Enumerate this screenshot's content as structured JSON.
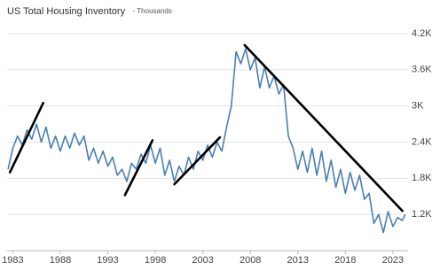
{
  "chart_data": {
    "type": "line",
    "title": "US Total Housing Inventory",
    "subtitle": "- Thousands",
    "x": [
      1982.5,
      1983,
      1983.5,
      1984,
      1984.5,
      1985,
      1985.5,
      1986,
      1986.5,
      1987,
      1987.5,
      1988,
      1988.5,
      1989,
      1989.5,
      1990,
      1990.5,
      1991,
      1991.5,
      1992,
      1992.5,
      1993,
      1993.5,
      1994,
      1994.5,
      1995,
      1995.5,
      1996,
      1996.5,
      1997,
      1997.5,
      1998,
      1998.5,
      1999,
      1999.5,
      2000,
      2000.5,
      2001,
      2001.5,
      2002,
      2002.5,
      2003,
      2003.5,
      2004,
      2004.5,
      2005,
      2005.5,
      2006,
      2006.5,
      2007,
      2007.5,
      2008,
      2008.5,
      2009,
      2009.5,
      2010,
      2010.5,
      2011,
      2011.5,
      2012,
      2012.5,
      2013,
      2013.5,
      2014,
      2014.5,
      2015,
      2015.5,
      2016,
      2016.5,
      2017,
      2017.5,
      2018,
      2018.5,
      2019,
      2019.5,
      2020,
      2020.5,
      2021,
      2021.5,
      2022,
      2022.5,
      2023,
      2023.5,
      2024,
      2024.3
    ],
    "series": [
      {
        "name": "US Total Housing Inventory",
        "color": "#4a7fb3",
        "values": [
          1950,
          2300,
          2500,
          2350,
          2600,
          2450,
          2700,
          2400,
          2650,
          2300,
          2500,
          2250,
          2500,
          2300,
          2550,
          2350,
          2500,
          2100,
          2300,
          2050,
          2250,
          2000,
          2150,
          1850,
          1950,
          1750,
          2050,
          1950,
          2200,
          2050,
          2350,
          2050,
          2300,
          1850,
          2100,
          1750,
          2000,
          1850,
          2150,
          1950,
          2250,
          2100,
          2350,
          2150,
          2400,
          2250,
          2650,
          3000,
          3900,
          3700,
          3950,
          3600,
          3800,
          3300,
          3650,
          3300,
          3500,
          3200,
          3350,
          2500,
          2300,
          1950,
          2250,
          1900,
          2300,
          1850,
          2250,
          1750,
          2100,
          1650,
          1950,
          1550,
          1900,
          1600,
          1850,
          1450,
          1550,
          1050,
          1200,
          900,
          1250,
          1000,
          1150,
          1100,
          1200
        ]
      }
    ],
    "annotation_lines": [
      {
        "color": "#000000",
        "x": [
          1982.7,
          1986.2
        ],
        "y": [
          1900,
          3050
        ]
      },
      {
        "color": "#000000",
        "x": [
          1994.8,
          1997.7
        ],
        "y": [
          1520,
          2430
        ]
      },
      {
        "color": "#000000",
        "x": [
          2000.0,
          2004.8
        ],
        "y": [
          1700,
          2480
        ]
      },
      {
        "color": "#000000",
        "x": [
          2007.4,
          2024.0
        ],
        "y": [
          4010,
          1260
        ]
      }
    ],
    "xlim": [
      1982.4,
      2024.6
    ],
    "xticks": [
      1983,
      1988,
      1993,
      1998,
      2003,
      2008,
      2013,
      2018,
      2023
    ],
    "ylim": [
      600,
      4200
    ],
    "yticks": [
      {
        "value": 1200,
        "label": "1.2K"
      },
      {
        "value": 1800,
        "label": "1.8K"
      },
      {
        "value": 2400,
        "label": "2.4K"
      },
      {
        "value": 3000,
        "label": "3K"
      },
      {
        "value": 3600,
        "label": "3.6K"
      },
      {
        "value": 4200,
        "label": "4.2K"
      }
    ],
    "grid": true
  }
}
